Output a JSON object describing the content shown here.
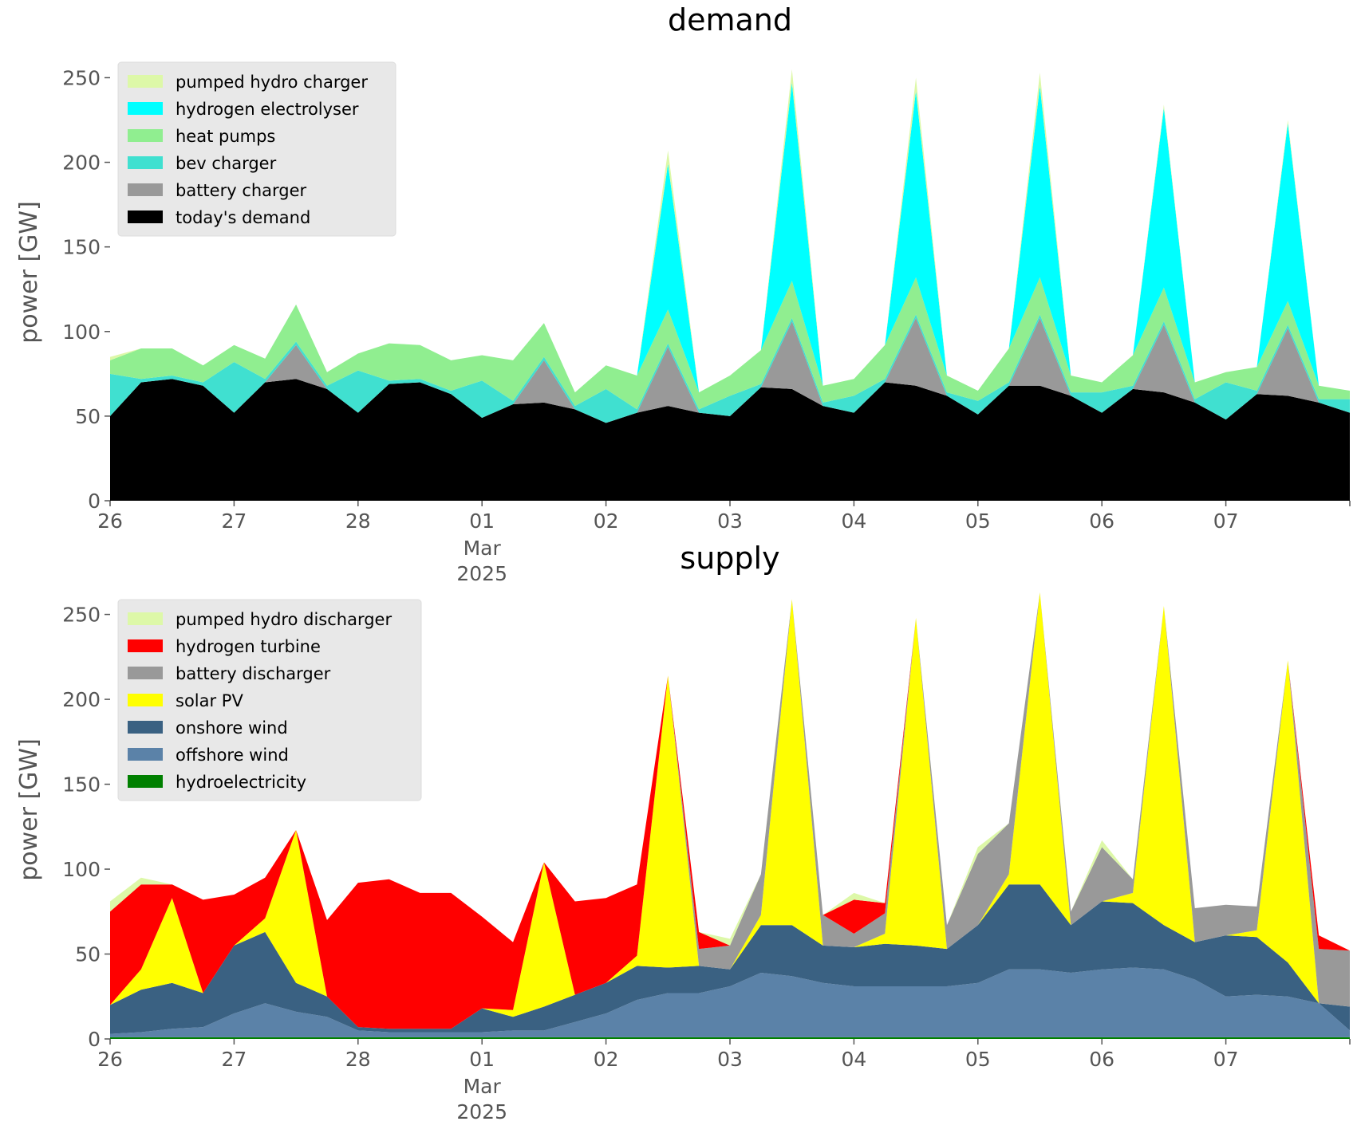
{
  "chart_data": [
    {
      "type": "area",
      "stacked": true,
      "title": "demand",
      "xlabel": "",
      "ylabel": "power [GW]",
      "ylim": [
        0,
        270
      ],
      "yticks": [
        0,
        50,
        100,
        150,
        200,
        250
      ],
      "xlim": [
        "2025-02-26",
        "2025-03-08"
      ],
      "xticks": [
        {
          "date": "2025-02-26",
          "label": "26"
        },
        {
          "date": "2025-02-27",
          "label": "27"
        },
        {
          "date": "2025-02-28",
          "label": "28"
        },
        {
          "date": "2025-03-01",
          "label": "01",
          "sublabel": [
            "Mar",
            "2025"
          ]
        },
        {
          "date": "2025-03-02",
          "label": "02"
        },
        {
          "date": "2025-03-03",
          "label": "03"
        },
        {
          "date": "2025-03-04",
          "label": "04"
        },
        {
          "date": "2025-03-05",
          "label": "05"
        },
        {
          "date": "2025-03-06",
          "label": "06"
        },
        {
          "date": "2025-03-07",
          "label": "07"
        }
      ],
      "grid": false,
      "legend_position": "top-left",
      "legend": [
        "pumped hydro charger",
        "hydrogen electrolyser",
        "heat pumps",
        "bev charger",
        "battery charger",
        "today's demand"
      ],
      "x": [
        "2025-02-26 00:00",
        "2025-02-26 06:00",
        "2025-02-26 12:00",
        "2025-02-26 18:00",
        "2025-02-27 00:00",
        "2025-02-27 06:00",
        "2025-02-27 12:00",
        "2025-02-27 18:00",
        "2025-02-28 00:00",
        "2025-02-28 06:00",
        "2025-02-28 12:00",
        "2025-02-28 18:00",
        "2025-03-01 00:00",
        "2025-03-01 06:00",
        "2025-03-01 12:00",
        "2025-03-01 18:00",
        "2025-03-02 00:00",
        "2025-03-02 06:00",
        "2025-03-02 12:00",
        "2025-03-02 18:00",
        "2025-03-03 00:00",
        "2025-03-03 06:00",
        "2025-03-03 12:00",
        "2025-03-03 18:00",
        "2025-03-04 00:00",
        "2025-03-04 06:00",
        "2025-03-04 12:00",
        "2025-03-04 18:00",
        "2025-03-05 00:00",
        "2025-03-05 06:00",
        "2025-03-05 12:00",
        "2025-03-05 18:00",
        "2025-03-06 00:00",
        "2025-03-06 06:00",
        "2025-03-06 12:00",
        "2025-03-06 18:00",
        "2025-03-07 00:00",
        "2025-03-07 06:00",
        "2025-03-07 12:00",
        "2025-03-07 18:00",
        "2025-03-08 00:00"
      ],
      "series": [
        {
          "name": "today's demand",
          "color": "#000000",
          "values": [
            50,
            70,
            72,
            68,
            52,
            70,
            72,
            66,
            52,
            69,
            70,
            63,
            49,
            57,
            58,
            54,
            46,
            52,
            56,
            52,
            50,
            67,
            66,
            56,
            52,
            70,
            68,
            62,
            51,
            68,
            68,
            62,
            52,
            66,
            64,
            58,
            48,
            63,
            62,
            58,
            52
          ]
        },
        {
          "name": "battery charger",
          "color": "#999999",
          "values": [
            0,
            0,
            0,
            0,
            0,
            0,
            20,
            0,
            0,
            0,
            0,
            0,
            0,
            0,
            25,
            0,
            0,
            0,
            35,
            0,
            0,
            0,
            40,
            0,
            0,
            0,
            40,
            0,
            0,
            0,
            40,
            0,
            0,
            0,
            40,
            0,
            0,
            0,
            40,
            0,
            0
          ]
        },
        {
          "name": "bev charger",
          "color": "#40e0d0",
          "values": [
            25,
            2,
            2,
            2,
            30,
            2,
            2,
            2,
            25,
            2,
            2,
            2,
            22,
            2,
            2,
            2,
            20,
            2,
            2,
            2,
            12,
            2,
            2,
            2,
            10,
            2,
            2,
            2,
            8,
            2,
            2,
            2,
            12,
            2,
            2,
            2,
            22,
            2,
            2,
            2,
            8
          ]
        },
        {
          "name": "heat pumps",
          "color": "#90ee90",
          "values": [
            8,
            18,
            16,
            10,
            10,
            12,
            22,
            8,
            10,
            22,
            20,
            18,
            15,
            24,
            20,
            8,
            14,
            20,
            20,
            10,
            12,
            20,
            22,
            10,
            10,
            20,
            22,
            10,
            6,
            20,
            22,
            10,
            6,
            18,
            20,
            10,
            6,
            14,
            14,
            8,
            5
          ]
        },
        {
          "name": "hydrogen electrolyser",
          "color": "#00ffff",
          "values": [
            0,
            0,
            0,
            0,
            0,
            0,
            0,
            0,
            0,
            0,
            0,
            0,
            0,
            0,
            0,
            0,
            0,
            0,
            86,
            0,
            0,
            0,
            117,
            0,
            0,
            0,
            110,
            0,
            0,
            0,
            113,
            0,
            0,
            0,
            106,
            0,
            0,
            0,
            105,
            0,
            0
          ]
        },
        {
          "name": "pumped hydro charger",
          "color": "#ddf8a8",
          "values": [
            2,
            0,
            0,
            0,
            0,
            0,
            0,
            0,
            0,
            0,
            0,
            0,
            0,
            0,
            0,
            0,
            0,
            0,
            8,
            0,
            0,
            0,
            8,
            0,
            0,
            0,
            8,
            0,
            0,
            0,
            8,
            0,
            0,
            0,
            2,
            0,
            0,
            0,
            2,
            0,
            0
          ]
        }
      ]
    },
    {
      "type": "area",
      "stacked": true,
      "title": "supply",
      "xlabel": "",
      "ylabel": "power [GW]",
      "ylim": [
        0,
        270
      ],
      "yticks": [
        0,
        50,
        100,
        150,
        200,
        250
      ],
      "xlim": [
        "2025-02-26",
        "2025-03-08"
      ],
      "xticks": [
        {
          "date": "2025-02-26",
          "label": "26"
        },
        {
          "date": "2025-02-27",
          "label": "27"
        },
        {
          "date": "2025-02-28",
          "label": "28"
        },
        {
          "date": "2025-03-01",
          "label": "01",
          "sublabel": [
            "Mar",
            "2025"
          ]
        },
        {
          "date": "2025-03-02",
          "label": "02"
        },
        {
          "date": "2025-03-03",
          "label": "03"
        },
        {
          "date": "2025-03-04",
          "label": "04"
        },
        {
          "date": "2025-03-05",
          "label": "05"
        },
        {
          "date": "2025-03-06",
          "label": "06"
        },
        {
          "date": "2025-03-07",
          "label": "07"
        }
      ],
      "grid": false,
      "legend_position": "top-left",
      "legend": [
        "pumped hydro discharger",
        "hydrogen turbine",
        "battery discharger",
        "solar PV",
        "onshore wind",
        "offshore wind",
        "hydroelectricity"
      ],
      "x": [
        "2025-02-26 00:00",
        "2025-02-26 06:00",
        "2025-02-26 12:00",
        "2025-02-26 18:00",
        "2025-02-27 00:00",
        "2025-02-27 06:00",
        "2025-02-27 12:00",
        "2025-02-27 18:00",
        "2025-02-28 00:00",
        "2025-02-28 06:00",
        "2025-02-28 12:00",
        "2025-02-28 18:00",
        "2025-03-01 00:00",
        "2025-03-01 06:00",
        "2025-03-01 12:00",
        "2025-03-01 18:00",
        "2025-03-02 00:00",
        "2025-03-02 06:00",
        "2025-03-02 12:00",
        "2025-03-02 18:00",
        "2025-03-03 00:00",
        "2025-03-03 06:00",
        "2025-03-03 12:00",
        "2025-03-03 18:00",
        "2025-03-04 00:00",
        "2025-03-04 06:00",
        "2025-03-04 12:00",
        "2025-03-04 18:00",
        "2025-03-05 00:00",
        "2025-03-05 06:00",
        "2025-03-05 12:00",
        "2025-03-05 18:00",
        "2025-03-06 00:00",
        "2025-03-06 06:00",
        "2025-03-06 12:00",
        "2025-03-06 18:00",
        "2025-03-07 00:00",
        "2025-03-07 06:00",
        "2025-03-07 12:00",
        "2025-03-07 18:00",
        "2025-03-08 00:00"
      ],
      "series": [
        {
          "name": "hydroelectricity",
          "color": "#008000",
          "values": [
            1,
            1,
            1,
            1,
            1,
            1,
            1,
            1,
            1,
            1,
            1,
            1,
            1,
            1,
            1,
            1,
            1,
            1,
            1,
            1,
            1,
            1,
            1,
            1,
            1,
            1,
            1,
            1,
            1,
            1,
            1,
            1,
            1,
            1,
            1,
            1,
            1,
            1,
            1,
            1,
            1
          ]
        },
        {
          "name": "offshore wind",
          "color": "#5b82a8",
          "values": [
            2,
            3,
            5,
            6,
            14,
            20,
            15,
            12,
            4,
            3,
            3,
            3,
            3,
            4,
            4,
            9,
            14,
            22,
            26,
            26,
            30,
            38,
            36,
            32,
            30,
            30,
            30,
            30,
            32,
            40,
            40,
            38,
            40,
            41,
            40,
            34,
            24,
            25,
            24,
            20,
            4
          ]
        },
        {
          "name": "onshore wind",
          "color": "#3a6182",
          "values": [
            17,
            25,
            27,
            20,
            40,
            42,
            17,
            12,
            2,
            2,
            2,
            2,
            14,
            8,
            14,
            16,
            18,
            20,
            15,
            16,
            10,
            28,
            30,
            22,
            23,
            25,
            24,
            22,
            34,
            50,
            50,
            28,
            40,
            38,
            26,
            22,
            36,
            34,
            20,
            0,
            14
          ]
        },
        {
          "name": "solar PV",
          "color": "#ffff00",
          "values": [
            0,
            12,
            50,
            0,
            0,
            8,
            90,
            0,
            0,
            0,
            0,
            0,
            0,
            4,
            85,
            0,
            0,
            6,
            172,
            0,
            0,
            6,
            192,
            0,
            0,
            6,
            193,
            0,
            0,
            6,
            172,
            0,
            0,
            6,
            188,
            0,
            0,
            4,
            178,
            0,
            0
          ]
        },
        {
          "name": "battery discharger",
          "color": "#999999",
          "values": [
            0,
            0,
            0,
            0,
            0,
            0,
            0,
            0,
            0,
            0,
            0,
            0,
            0,
            0,
            0,
            0,
            0,
            0,
            0,
            10,
            14,
            24,
            0,
            18,
            8,
            12,
            0,
            14,
            42,
            30,
            0,
            8,
            32,
            8,
            0,
            20,
            18,
            14,
            0,
            32,
            33
          ]
        },
        {
          "name": "hydrogen turbine",
          "color": "#ff0000",
          "values": [
            55,
            50,
            8,
            55,
            30,
            24,
            0,
            45,
            85,
            88,
            80,
            80,
            54,
            40,
            0,
            55,
            50,
            42,
            0,
            10,
            0,
            0,
            0,
            0,
            20,
            6,
            0,
            0,
            0,
            0,
            0,
            0,
            0,
            0,
            0,
            0,
            0,
            0,
            0,
            8,
            0
          ]
        },
        {
          "name": "pumped hydro discharger",
          "color": "#ddf8a8",
          "values": [
            6,
            4,
            0,
            0,
            0,
            0,
            0,
            0,
            0,
            0,
            0,
            0,
            0,
            0,
            0,
            0,
            0,
            0,
            0,
            0,
            4,
            0,
            0,
            0,
            4,
            0,
            0,
            0,
            4,
            0,
            0,
            0,
            4,
            0,
            0,
            0,
            0,
            0,
            0,
            0,
            0
          ]
        }
      ]
    }
  ]
}
